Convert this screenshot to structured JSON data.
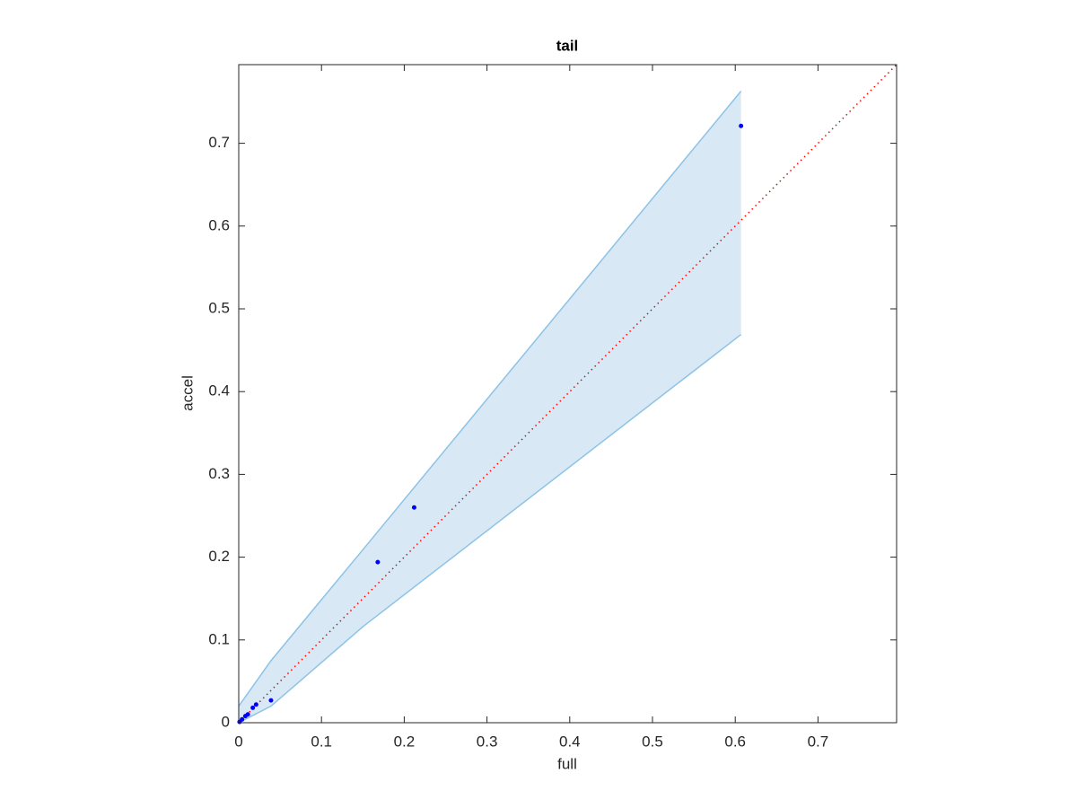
{
  "chart_data": {
    "type": "scatter",
    "title": "tail",
    "x_label": "full",
    "y_label": "accel",
    "xlim": [
      0,
      0.795
    ],
    "ylim": [
      0,
      0.795
    ],
    "xticks": [
      0,
      0.1,
      0.2,
      0.3,
      0.4,
      0.5,
      0.6,
      0.7
    ],
    "yticks": [
      0,
      0.1,
      0.2,
      0.3,
      0.4,
      0.5,
      0.6,
      0.7
    ],
    "points": {
      "color": "#0000ff",
      "x": [
        0.607,
        0.212,
        0.168,
        0.039,
        0.021,
        0.017,
        0.011,
        0.008,
        0.004,
        0.001
      ],
      "values": [
        0.721,
        0.26,
        0.194,
        0.027,
        0.022,
        0.018,
        0.01,
        0.008,
        0.004,
        0.001
      ]
    },
    "band": {
      "color": "#d9e8f5",
      "edge_color": "#8cc3e6",
      "x": [
        0,
        0.039,
        0.15,
        0.607
      ],
      "upper": [
        0.02,
        0.075,
        0.209,
        0.763
      ],
      "lower": [
        0,
        0.02,
        0.116,
        0.469
      ]
    },
    "reference_line": {
      "color": "#ff0000",
      "style": "dotted",
      "x": [
        0,
        0.795
      ],
      "values": [
        0,
        0.795
      ]
    }
  }
}
